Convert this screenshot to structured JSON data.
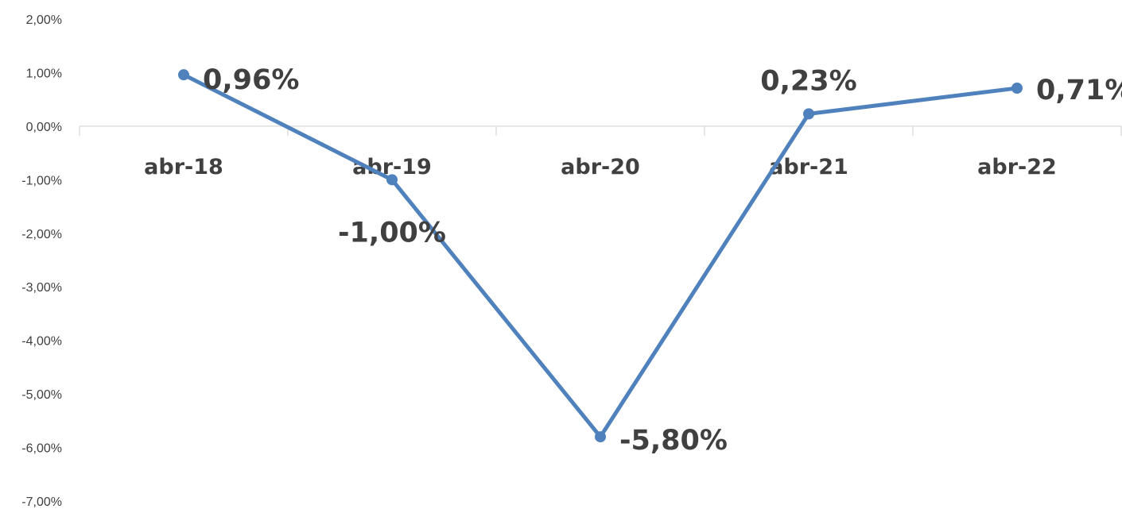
{
  "chart_data": {
    "type": "line",
    "categories": [
      "abr-18",
      "abr-19",
      "abr-20",
      "abr-21",
      "abr-22"
    ],
    "series": [
      {
        "values": [
          0.96,
          -1.0,
          -5.8,
          0.23,
          0.71
        ]
      }
    ],
    "data_labels": [
      "0,96%",
      "-1,00%",
      "-5,80%",
      "0,23%",
      "0,71%"
    ],
    "yticks": [
      2,
      1,
      0,
      -1,
      -2,
      -3,
      -4,
      -5,
      -6,
      -7
    ],
    "ytick_labels": [
      "2,00%",
      "1,00%",
      "0,00%",
      "-1,00%",
      "-2,00%",
      "-3,00%",
      "-4,00%",
      "-5,00%",
      "-6,00%",
      "-7,00%"
    ],
    "ylim": [
      -7,
      2
    ],
    "title": "",
    "xlabel": "",
    "ylabel": "",
    "grid": false,
    "legend": "none",
    "line_color": "#4f81bd",
    "text_color": "#404040",
    "axis_color": "#d9d9d9"
  }
}
